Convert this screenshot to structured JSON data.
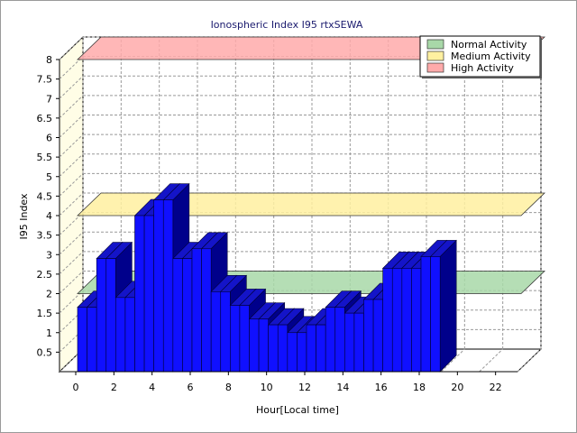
{
  "chart_data": {
    "type": "bar",
    "title": "Ionospheric Index I95 rtxSEWA",
    "xlabel": "Hour[Local time]",
    "ylabel": "I95 Index",
    "x_ticks": [
      "0",
      "2",
      "4",
      "6",
      "8",
      "10",
      "12",
      "14",
      "16",
      "18",
      "20",
      "22"
    ],
    "y_ticks": [
      "0.5",
      "1",
      "1.5",
      "2",
      "2.5",
      "3",
      "3.5",
      "4",
      "4.5",
      "5",
      "5.5",
      "6",
      "6.5",
      "7",
      "7.5",
      "8"
    ],
    "xlim": [
      0,
      24
    ],
    "ylim": [
      0,
      8
    ],
    "grid": true,
    "legend_position": "top-right",
    "bar_color": "#1010ff",
    "hours": [
      0,
      0.5,
      1,
      1.5,
      2,
      2.5,
      3,
      3.5,
      4,
      4.5,
      5,
      5.5,
      6,
      6.5,
      7,
      7.5,
      8,
      8.5,
      9,
      9.5,
      10,
      10.5,
      11,
      11.5,
      12,
      12.5,
      13,
      13.5,
      14,
      14.5,
      15,
      15.5,
      16,
      16.5,
      17,
      17.5,
      18,
      18.5
    ],
    "values": [
      1.65,
      1.65,
      2.9,
      2.9,
      1.9,
      1.9,
      4.0,
      4.0,
      4.4,
      4.4,
      2.9,
      2.9,
      3.15,
      3.15,
      2.05,
      2.05,
      1.7,
      1.7,
      1.35,
      1.35,
      1.2,
      1.2,
      1.0,
      1.0,
      1.2,
      1.2,
      1.65,
      1.65,
      1.5,
      1.5,
      1.85,
      1.85,
      2.65,
      2.65,
      2.65,
      2.65,
      2.95,
      2.95
    ],
    "bands": [
      {
        "name": "Normal Activity",
        "level": 2.0,
        "color": "#a8d8a8"
      },
      {
        "name": "Medium Activity",
        "level": 4.0,
        "color": "#fff0a0"
      },
      {
        "name": "High Activity",
        "level": 8.0,
        "color": "#ffaaaa"
      }
    ]
  }
}
